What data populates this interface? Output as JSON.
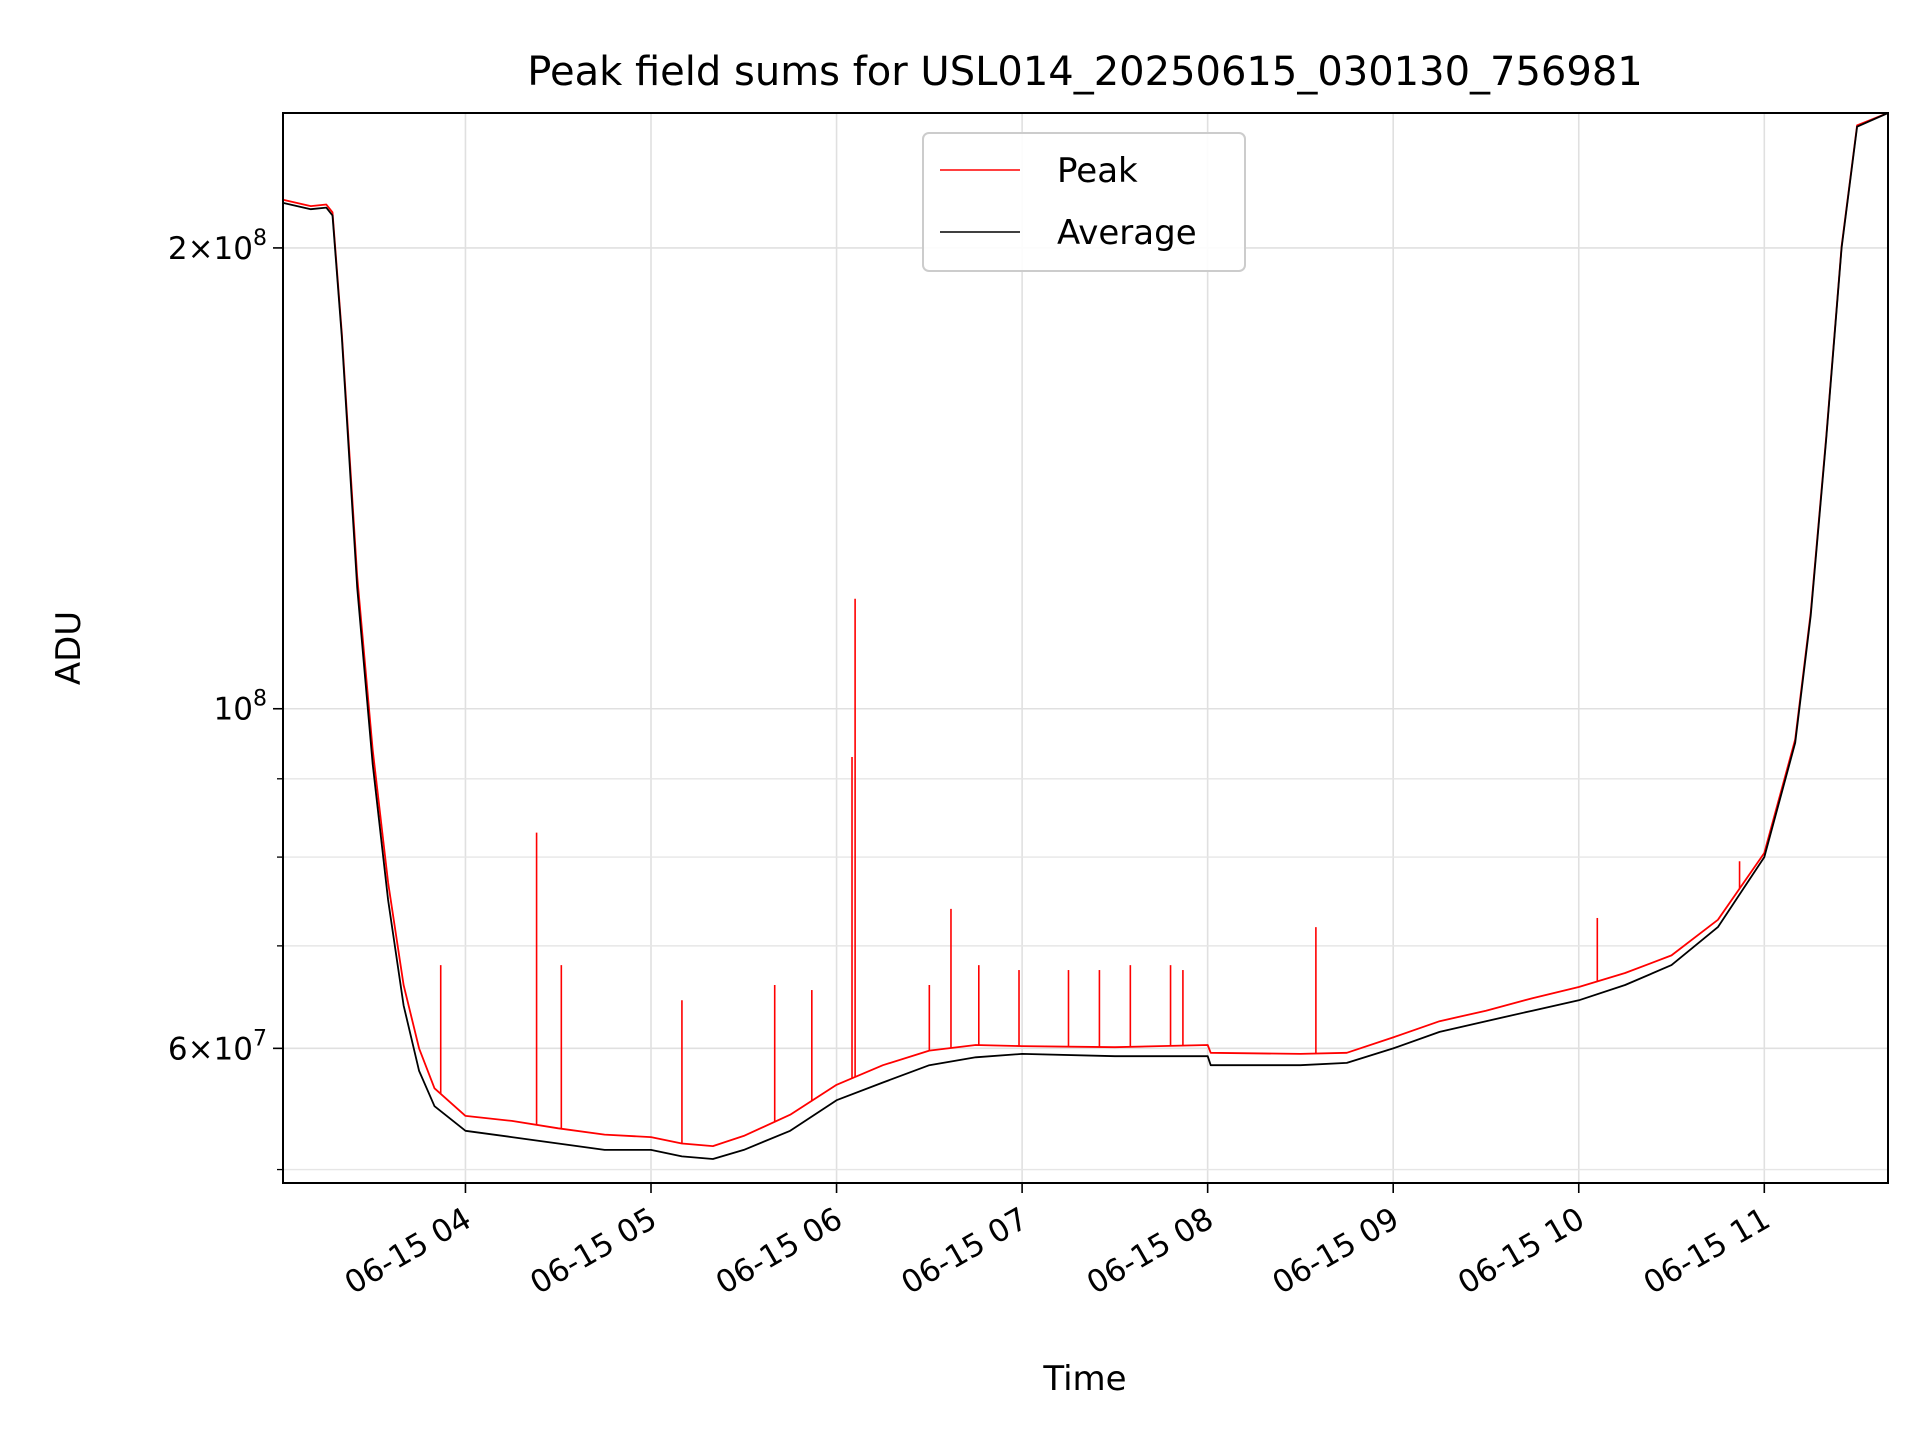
{
  "chart_data": {
    "type": "line",
    "title": "Peak field sums for USL014_20250615_030130_756981",
    "xlabel": "Time",
    "ylabel": "ADU",
    "yscale": "log",
    "xlim": [
      "2025-06-15 03:01",
      "2025-06-15 11:40"
    ],
    "ylim": [
      49000000,
      245000000
    ],
    "grid": true,
    "legend_position": "top-center",
    "x_ticks": [
      {
        "value": "2025-06-15 04:00",
        "label": "06-15 04"
      },
      {
        "value": "2025-06-15 05:00",
        "label": "06-15 05"
      },
      {
        "value": "2025-06-15 06:00",
        "label": "06-15 06"
      },
      {
        "value": "2025-06-15 07:00",
        "label": "06-15 07"
      },
      {
        "value": "2025-06-15 08:00",
        "label": "06-15 08"
      },
      {
        "value": "2025-06-15 09:00",
        "label": "06-15 09"
      },
      {
        "value": "2025-06-15 10:00",
        "label": "06-15 10"
      },
      {
        "value": "2025-06-15 11:00",
        "label": "06-15 11"
      }
    ],
    "y_ticks": [
      {
        "value": 60000000,
        "mantissa": "6",
        "exponent": "7"
      },
      {
        "value": 100000000,
        "mantissa": "",
        "exponent": "8"
      },
      {
        "value": 200000000,
        "mantissa": "2",
        "exponent": "8"
      }
    ],
    "y_minor_ticks": [
      50000000,
      70000000,
      80000000,
      90000000
    ],
    "series": [
      {
        "name": "Average",
        "color": "#000000",
        "x": [
          "2025-06-15 03:01",
          "2025-06-15 03:10",
          "2025-06-15 03:15",
          "2025-06-15 03:17",
          "2025-06-15 03:20",
          "2025-06-15 03:25",
          "2025-06-15 03:30",
          "2025-06-15 03:35",
          "2025-06-15 03:40",
          "2025-06-15 03:45",
          "2025-06-15 03:50",
          "2025-06-15 04:00",
          "2025-06-15 04:15",
          "2025-06-15 04:30",
          "2025-06-15 04:45",
          "2025-06-15 05:00",
          "2025-06-15 05:10",
          "2025-06-15 05:20",
          "2025-06-15 05:30",
          "2025-06-15 05:45",
          "2025-06-15 06:00",
          "2025-06-15 06:15",
          "2025-06-15 06:30",
          "2025-06-15 06:45",
          "2025-06-15 07:00",
          "2025-06-15 07:30",
          "2025-06-15 08:00",
          "2025-06-15 08:01",
          "2025-06-15 08:30",
          "2025-06-15 08:45",
          "2025-06-15 09:00",
          "2025-06-15 09:15",
          "2025-06-15 09:30",
          "2025-06-15 09:45",
          "2025-06-15 10:00",
          "2025-06-15 10:15",
          "2025-06-15 10:30",
          "2025-06-15 10:45",
          "2025-06-15 11:00",
          "2025-06-15 11:10",
          "2025-06-15 11:15",
          "2025-06-15 11:20",
          "2025-06-15 11:25",
          "2025-06-15 11:30",
          "2025-06-15 11:40"
        ],
        "values": [
          214000000,
          212000000,
          212500000,
          210000000,
          175000000,
          120000000,
          92000000,
          75000000,
          64000000,
          58000000,
          55000000,
          53000000,
          52500000,
          52000000,
          51500000,
          51500000,
          51000000,
          50800000,
          51500000,
          53000000,
          55500000,
          57000000,
          58500000,
          59200000,
          59500000,
          59300000,
          59300000,
          58500000,
          58500000,
          58700000,
          60000000,
          61500000,
          62500000,
          63500000,
          64500000,
          66000000,
          68000000,
          72000000,
          80000000,
          95000000,
          115000000,
          150000000,
          200000000,
          240000000,
          245000000
        ]
      },
      {
        "name": "Peak",
        "color": "#ff0000",
        "x": [
          "2025-06-15 03:01",
          "2025-06-15 03:10",
          "2025-06-15 03:15",
          "2025-06-15 03:17",
          "2025-06-15 03:20",
          "2025-06-15 03:25",
          "2025-06-15 03:30",
          "2025-06-15 03:35",
          "2025-06-15 03:40",
          "2025-06-15 03:45",
          "2025-06-15 03:50",
          "2025-06-15 04:00",
          "2025-06-15 04:15",
          "2025-06-15 04:30",
          "2025-06-15 04:45",
          "2025-06-15 05:00",
          "2025-06-15 05:10",
          "2025-06-15 05:20",
          "2025-06-15 05:30",
          "2025-06-15 05:45",
          "2025-06-15 06:00",
          "2025-06-15 06:15",
          "2025-06-15 06:30",
          "2025-06-15 06:45",
          "2025-06-15 07:00",
          "2025-06-15 07:30",
          "2025-06-15 08:00",
          "2025-06-15 08:01",
          "2025-06-15 08:30",
          "2025-06-15 08:45",
          "2025-06-15 09:00",
          "2025-06-15 09:15",
          "2025-06-15 09:30",
          "2025-06-15 09:45",
          "2025-06-15 10:00",
          "2025-06-15 10:15",
          "2025-06-15 10:30",
          "2025-06-15 10:45",
          "2025-06-15 11:00",
          "2025-06-15 11:10",
          "2025-06-15 11:15",
          "2025-06-15 11:20",
          "2025-06-15 11:25",
          "2025-06-15 11:30",
          "2025-06-15 11:40"
        ],
        "values": [
          215000000,
          213000000,
          213500000,
          211000000,
          176000000,
          122000000,
          94000000,
          77000000,
          66000000,
          60000000,
          56500000,
          54200000,
          53800000,
          53200000,
          52700000,
          52500000,
          52000000,
          51800000,
          52600000,
          54300000,
          56800000,
          58500000,
          59800000,
          60300000,
          60200000,
          60100000,
          60300000,
          59600000,
          59500000,
          59600000,
          61000000,
          62500000,
          63500000,
          64700000,
          65800000,
          67200000,
          69000000,
          72800000,
          80500000,
          95500000,
          115500000,
          150500000,
          200500000,
          240500000,
          245000000
        ]
      }
    ],
    "annotations": [
      {
        "series": "Peak",
        "x": "2025-06-15 04:23",
        "value": 83000000
      },
      {
        "series": "Peak",
        "x": "2025-06-15 04:31",
        "value": 68000000
      },
      {
        "series": "Peak",
        "x": "2025-06-15 03:52",
        "value": 68000000
      },
      {
        "series": "Peak",
        "x": "2025-06-15 05:10",
        "value": 64500000
      },
      {
        "series": "Peak",
        "x": "2025-06-15 05:40",
        "value": 66000000
      },
      {
        "series": "Peak",
        "x": "2025-06-15 05:52",
        "value": 65500000
      },
      {
        "series": "Peak",
        "x": "2025-06-15 06:05",
        "value": 93000000
      },
      {
        "series": "Peak",
        "x": "2025-06-15 06:06",
        "value": 118000000
      },
      {
        "series": "Peak",
        "x": "2025-06-15 06:30",
        "value": 66000000
      },
      {
        "series": "Peak",
        "x": "2025-06-15 06:37",
        "value": 74000000
      },
      {
        "series": "Peak",
        "x": "2025-06-15 06:46",
        "value": 68000000
      },
      {
        "series": "Peak",
        "x": "2025-06-15 06:59",
        "value": 67500000
      },
      {
        "series": "Peak",
        "x": "2025-06-15 07:15",
        "value": 67500000
      },
      {
        "series": "Peak",
        "x": "2025-06-15 07:25",
        "value": 67500000
      },
      {
        "series": "Peak",
        "x": "2025-06-15 07:35",
        "value": 68000000
      },
      {
        "series": "Peak",
        "x": "2025-06-15 07:48",
        "value": 68000000
      },
      {
        "series": "Peak",
        "x": "2025-06-15 07:52",
        "value": 67500000
      },
      {
        "series": "Peak",
        "x": "2025-06-15 08:35",
        "value": 72000000
      },
      {
        "series": "Peak",
        "x": "2025-06-15 10:06",
        "value": 73000000
      },
      {
        "series": "Peak",
        "x": "2025-06-15 10:52",
        "value": 79500000
      }
    ]
  }
}
